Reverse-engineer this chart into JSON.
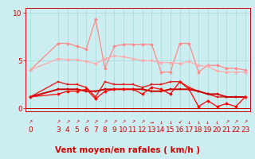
{
  "bg_color": "#cceef0",
  "grid_color": "#aadddd",
  "xlabel": "Vent moyen/en rafales ( km/h )",
  "xlim": [
    -0.5,
    23.5
  ],
  "ylim": [
    -0.3,
    10.5
  ],
  "yticks": [
    0,
    5,
    10
  ],
  "xticks": [
    0,
    3,
    4,
    5,
    6,
    7,
    8,
    9,
    10,
    11,
    12,
    13,
    14,
    15,
    16,
    17,
    18,
    19,
    20,
    21,
    22,
    23
  ],
  "line_pink_upper": {
    "x": [
      0,
      3,
      4,
      5,
      6,
      7,
      8,
      9,
      10,
      11,
      12,
      13,
      14,
      15,
      16,
      17,
      18,
      19,
      20,
      21,
      22,
      23
    ],
    "y": [
      4.0,
      6.8,
      6.8,
      6.5,
      6.2,
      9.3,
      4.2,
      6.5,
      6.7,
      6.7,
      6.7,
      6.7,
      3.8,
      3.8,
      6.8,
      6.8,
      3.8,
      4.5,
      4.5,
      4.2,
      4.2,
      4.0
    ],
    "color": "#ff8888",
    "marker": "D",
    "markersize": 2.0,
    "linewidth": 0.9
  },
  "line_pink_lower": {
    "x": [
      0,
      3,
      4,
      5,
      6,
      7,
      8,
      9,
      10,
      11,
      12,
      13,
      14,
      15,
      16,
      17,
      18,
      19,
      20,
      21,
      22,
      23
    ],
    "y": [
      4.0,
      5.2,
      5.1,
      5.1,
      4.9,
      4.7,
      5.2,
      5.5,
      5.4,
      5.2,
      5.0,
      5.0,
      4.8,
      4.8,
      4.7,
      4.9,
      4.5,
      4.4,
      3.9,
      3.8,
      3.8,
      3.8
    ],
    "color": "#ffaaaa",
    "marker": "D",
    "markersize": 2.0,
    "linewidth": 0.9
  },
  "line_red_upper": {
    "x": [
      0,
      3,
      4,
      5,
      6,
      7,
      8,
      9,
      10,
      11,
      12,
      13,
      14,
      15,
      16,
      17,
      18,
      19,
      20,
      21,
      22,
      23
    ],
    "y": [
      1.2,
      2.8,
      2.5,
      2.5,
      2.2,
      1.2,
      2.8,
      2.5,
      2.5,
      2.5,
      2.2,
      2.5,
      2.5,
      2.8,
      2.8,
      2.2,
      1.8,
      1.5,
      1.2,
      1.2,
      1.2,
      1.2
    ],
    "color": "#dd2222",
    "marker": "s",
    "markersize": 2.0,
    "linewidth": 1.0
  },
  "line_red_mid": {
    "x": [
      0,
      3,
      4,
      5,
      6,
      7,
      8,
      9,
      10,
      11,
      12,
      13,
      14,
      15,
      16,
      17,
      18,
      19,
      20,
      21,
      22,
      23
    ],
    "y": [
      1.2,
      2.0,
      2.0,
      2.0,
      1.8,
      1.8,
      2.0,
      2.0,
      2.0,
      2.0,
      2.0,
      1.8,
      1.8,
      2.0,
      2.0,
      2.0,
      1.8,
      1.5,
      1.5,
      1.2,
      1.2,
      1.2
    ],
    "color": "#cc0000",
    "marker": "s",
    "markersize": 1.8,
    "linewidth": 1.4
  },
  "line_red_lower": {
    "x": [
      0,
      3,
      4,
      5,
      6,
      7,
      8,
      9,
      10,
      11,
      12,
      13,
      14,
      15,
      16,
      17,
      18,
      19,
      20,
      21,
      22,
      23
    ],
    "y": [
      1.2,
      1.5,
      1.8,
      1.8,
      2.0,
      1.0,
      1.8,
      2.0,
      2.0,
      2.0,
      1.5,
      2.2,
      2.0,
      1.5,
      2.8,
      2.0,
      0.2,
      0.8,
      0.2,
      0.5,
      0.2,
      1.2
    ],
    "color": "#ff0000",
    "marker": "D",
    "markersize": 2.0,
    "linewidth": 0.9
  },
  "arrows_x": [
    0,
    3,
    4,
    5,
    6,
    7,
    8,
    9,
    10,
    11,
    12,
    13,
    14,
    15,
    16,
    17,
    18,
    19,
    20,
    21,
    22,
    23
  ],
  "arrows_sym": [
    "↗",
    "↗",
    "↗",
    "↗",
    "↗",
    "↗",
    "↗",
    "↗",
    "↗",
    "↗",
    "↗",
    "→",
    "↓",
    "↓",
    "↙",
    "↓",
    "↓",
    "↓",
    "↓",
    "↗",
    "↗",
    "↗"
  ],
  "font_color": "#cc0000",
  "tick_color": "#cc0000",
  "axis_color": "#cc0000",
  "xlabel_fontsize": 7.5,
  "tick_fontsize": 6.5
}
